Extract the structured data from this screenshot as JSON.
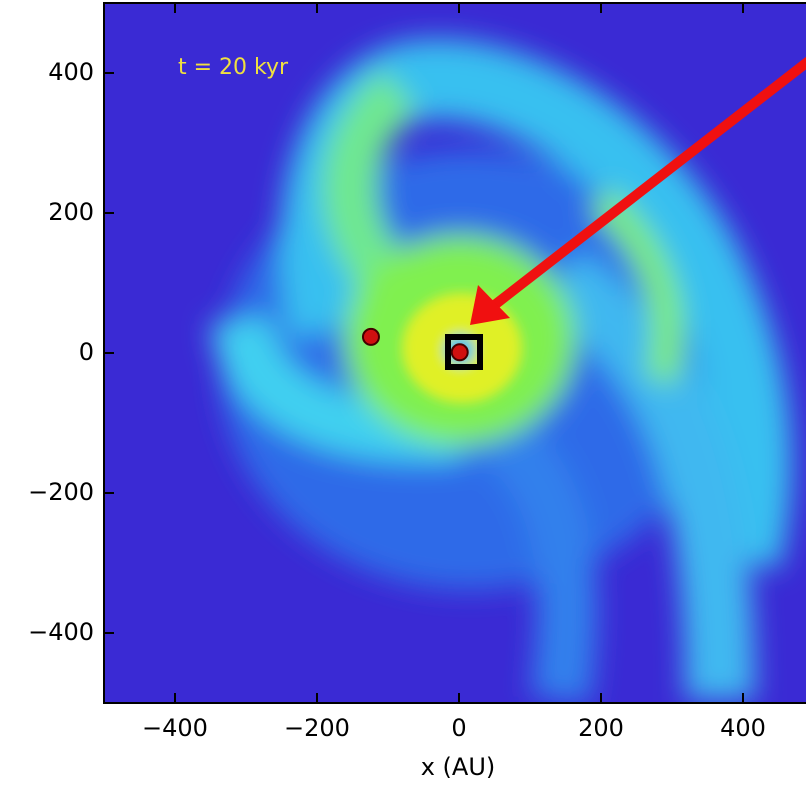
{
  "chart_data": {
    "type": "image",
    "annotation": "t = 20 kyr",
    "xlabel": "x (AU)",
    "xlim": [
      -500,
      500
    ],
    "ylim": [
      -500,
      500
    ],
    "xticks": [
      {
        "value": -400,
        "label": "−400"
      },
      {
        "value": -200,
        "label": "−200"
      },
      0,
      200,
      400
    ],
    "yticks": [
      400,
      200,
      0,
      {
        "value": -200,
        "label": "−200"
      },
      {
        "value": -400,
        "label": "−400"
      }
    ],
    "x": [
      -124,
      1
    ],
    "y": [
      23,
      1
    ],
    "color": "#d01010"
  }
}
